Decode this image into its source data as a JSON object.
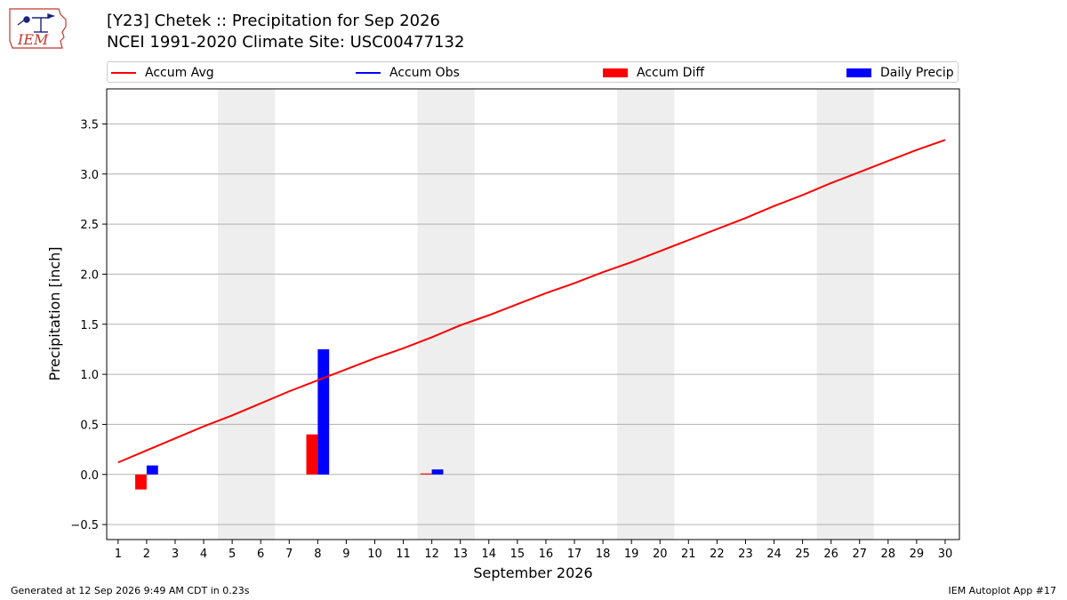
{
  "logo": {
    "text": "IEM"
  },
  "title": {
    "line1": "[Y23] Chetek :: Precipitation for Sep 2026",
    "line2": "NCEI 1991-2020 Climate Site: USC00477132"
  },
  "legend": [
    {
      "label": "Accum Avg",
      "kind": "line",
      "color": "#ff0000"
    },
    {
      "label": "Accum Obs",
      "kind": "line",
      "color": "#0000ff"
    },
    {
      "label": "Accum Diff",
      "kind": "box",
      "color": "#ff0000"
    },
    {
      "label": "Daily Precip",
      "kind": "box",
      "color": "#0000ff"
    }
  ],
  "chart_data": {
    "type": "bar",
    "xlabel": "September 2026",
    "ylabel": "Precipitation [inch]",
    "xlim": [
      0.6,
      30.5
    ],
    "ylim": [
      -0.65,
      3.85
    ],
    "x_ticks": [
      1,
      2,
      3,
      4,
      5,
      6,
      7,
      8,
      9,
      10,
      11,
      12,
      13,
      14,
      15,
      16,
      17,
      18,
      19,
      20,
      21,
      22,
      23,
      24,
      25,
      26,
      27,
      28,
      29,
      30
    ],
    "y_ticks": [
      -0.5,
      0.0,
      0.5,
      1.0,
      1.5,
      2.0,
      2.5,
      3.0,
      3.5
    ],
    "y_tick_labels": [
      "−0.5",
      "0.0",
      "0.5",
      "1.0",
      "1.5",
      "2.0",
      "2.5",
      "3.0",
      "3.5"
    ],
    "grid": "y",
    "weekend_spans": [
      [
        4.5,
        6.5
      ],
      [
        11.5,
        13.5
      ],
      [
        18.5,
        20.5
      ],
      [
        25.5,
        27.5
      ]
    ],
    "accum_avg": {
      "x": [
        1,
        2,
        3,
        4,
        5,
        6,
        7,
        8,
        9,
        10,
        11,
        12,
        13,
        14,
        15,
        16,
        17,
        18,
        19,
        20,
        21,
        22,
        23,
        24,
        25,
        26,
        27,
        28,
        29,
        30
      ],
      "y": [
        0.12,
        0.24,
        0.36,
        0.48,
        0.59,
        0.71,
        0.83,
        0.94,
        1.05,
        1.16,
        1.26,
        1.37,
        1.49,
        1.59,
        1.7,
        1.81,
        1.91,
        2.02,
        2.12,
        2.23,
        2.34,
        2.45,
        2.56,
        2.68,
        2.79,
        2.91,
        3.02,
        3.13,
        3.24,
        3.34
      ],
      "color": "#ff0000"
    },
    "accum_obs": {
      "x": [],
      "y": [],
      "color": "#0000ff"
    },
    "accum_diff": {
      "x": [
        2,
        8,
        12
      ],
      "y": [
        -0.15,
        0.4,
        0.01
      ],
      "color": "#ff0000"
    },
    "daily_precip": {
      "x": [
        2,
        8,
        12
      ],
      "y": [
        0.09,
        1.25,
        0.05
      ],
      "color": "#0000ff"
    }
  },
  "footer": {
    "left": "Generated at 12 Sep 2026 9:49 AM CDT in 0.23s",
    "right": "IEM Autoplot App #17"
  }
}
